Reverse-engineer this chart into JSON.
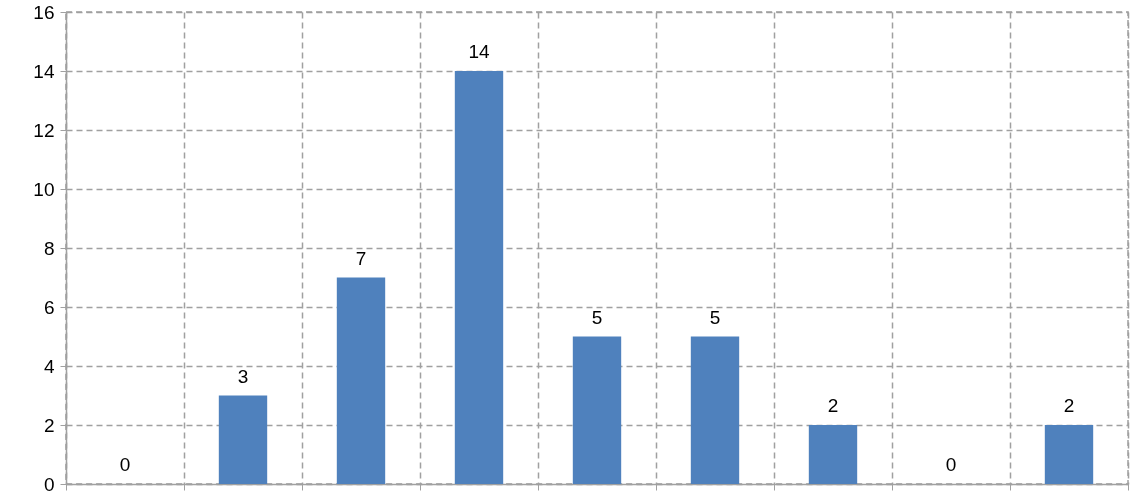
{
  "chart_data": {
    "type": "bar",
    "categories": [
      null,
      null,
      null,
      null,
      null,
      null,
      null,
      null,
      null
    ],
    "values": [
      0,
      3,
      7,
      14,
      5,
      5,
      2,
      0,
      2
    ],
    "color": "#4f81bd",
    "ylim": [
      0,
      16
    ],
    "yticks": [
      0,
      2,
      4,
      6,
      8,
      10,
      12,
      14,
      16
    ],
    "grid": true,
    "data_labels": true,
    "tick_labels": "y"
  }
}
